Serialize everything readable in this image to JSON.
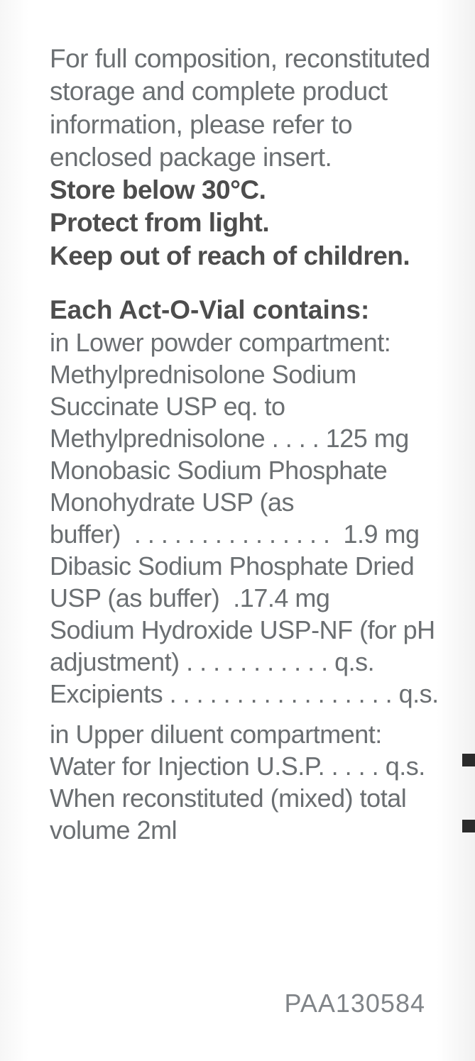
{
  "intro": {
    "text": "For full composition, reconstituted storage and complete product information, please refer to enclosed package insert.",
    "storage_lines": [
      "Store below 30°C.",
      "Protect from light.",
      "Keep out of reach of children."
    ]
  },
  "heading": "Each Act-O-Vial contains:",
  "lower_compartment": {
    "intro": "in Lower powder compartment:",
    "items": [
      {
        "name": "Methylprednisolone Sodium Succinate USP eq. to Methylprednisolone",
        "amount": "125 mg"
      },
      {
        "name": "Monobasic Sodium Phosphate Monohydrate USP (as buffer)",
        "amount": "1.9 mg"
      },
      {
        "name": "Dibasic Sodium Phosphate Dried USP (as buffer)",
        "amount": "17.4 mg"
      },
      {
        "name": "Sodium Hydroxide USP-NF (for pH adjustment)",
        "amount": "q.s."
      },
      {
        "name": "Excipients",
        "amount": "q.s."
      }
    ]
  },
  "upper_compartment": {
    "intro": "in Upper diluent compartment:",
    "items": [
      {
        "name": "Water for Injection U.S.P.",
        "amount": "q.s."
      }
    ],
    "tail": "When reconstituted (mixed) total volume 2ml"
  },
  "code": "PAA130584",
  "style": {
    "text_color": "#6b6f72",
    "bold_color": "#4d4d4d",
    "font_size_pt": 28,
    "background": "#ffffff"
  }
}
